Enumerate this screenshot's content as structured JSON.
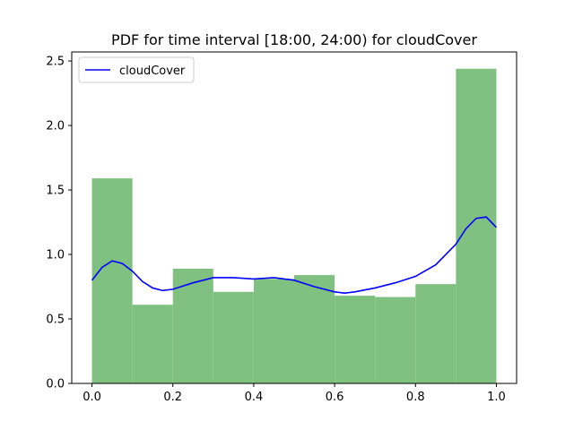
{
  "chart_data": {
    "type": "bar",
    "title": "PDF for time interval [18:00, 24:00) for cloudCover",
    "xlabel": "",
    "ylabel": "",
    "xlim": [
      -0.05,
      1.05
    ],
    "ylim": [
      0.0,
      2.57
    ],
    "x_ticks": [
      "0.0",
      "0.2",
      "0.4",
      "0.6",
      "0.8",
      "1.0"
    ],
    "y_ticks": [
      "0.0",
      "0.5",
      "1.0",
      "1.5",
      "2.0",
      "2.5"
    ],
    "grid": false,
    "legend_position": "upper-left",
    "histogram": {
      "bin_edges": [
        0.0,
        0.1,
        0.2,
        0.3,
        0.4,
        0.5,
        0.6,
        0.7,
        0.8,
        0.9,
        1.0
      ],
      "values": [
        1.59,
        0.61,
        0.89,
        0.71,
        0.81,
        0.84,
        0.68,
        0.67,
        0.77,
        2.44
      ],
      "color": "#80c080"
    },
    "series": [
      {
        "name": "cloudCover",
        "type": "line",
        "color": "#0000ff",
        "x": [
          0.0,
          0.025,
          0.05,
          0.075,
          0.1,
          0.125,
          0.15,
          0.175,
          0.2,
          0.25,
          0.3,
          0.35,
          0.4,
          0.45,
          0.5,
          0.55,
          0.6,
          0.625,
          0.65,
          0.7,
          0.75,
          0.8,
          0.85,
          0.9,
          0.925,
          0.95,
          0.975,
          1.0
        ],
        "y": [
          0.8,
          0.9,
          0.95,
          0.93,
          0.87,
          0.79,
          0.74,
          0.72,
          0.73,
          0.78,
          0.82,
          0.82,
          0.81,
          0.82,
          0.8,
          0.75,
          0.71,
          0.7,
          0.71,
          0.74,
          0.78,
          0.83,
          0.92,
          1.08,
          1.2,
          1.28,
          1.29,
          1.21
        ]
      }
    ]
  }
}
